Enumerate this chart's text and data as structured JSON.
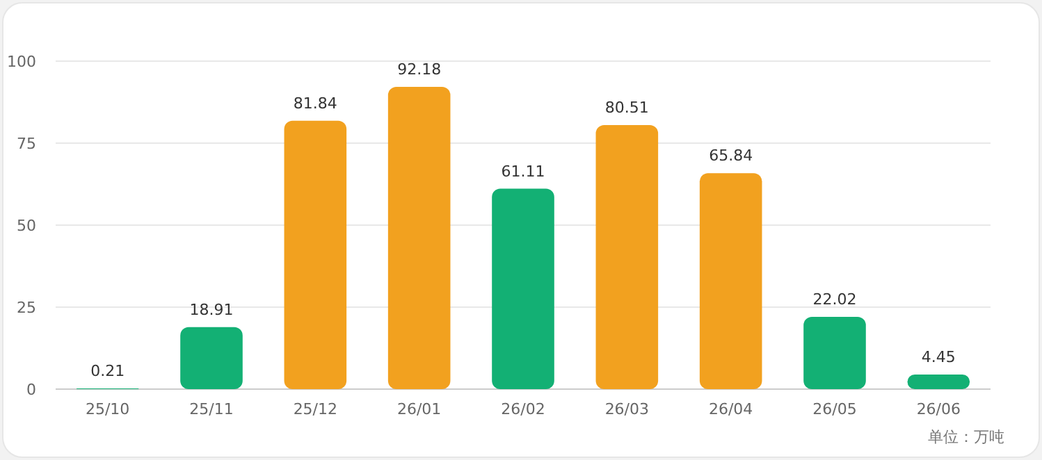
{
  "chart_data": {
    "type": "bar",
    "categories": [
      "25/10",
      "25/11",
      "25/12",
      "26/01",
      "26/02",
      "26/03",
      "26/04",
      "26/05",
      "26/06"
    ],
    "values": [
      0.21,
      18.91,
      81.84,
      92.18,
      61.11,
      80.51,
      65.84,
      22.02,
      4.45
    ],
    "colors": [
      "#13b074",
      "#13b074",
      "#f2a11f",
      "#f2a11f",
      "#13b074",
      "#f2a11f",
      "#f2a11f",
      "#13b074",
      "#13b074"
    ],
    "ylim": [
      0,
      100
    ],
    "yticks": [
      0,
      25,
      50,
      75,
      100
    ],
    "grid": "y",
    "data_labels": true,
    "annotations": [
      "单位：万吨"
    ]
  }
}
